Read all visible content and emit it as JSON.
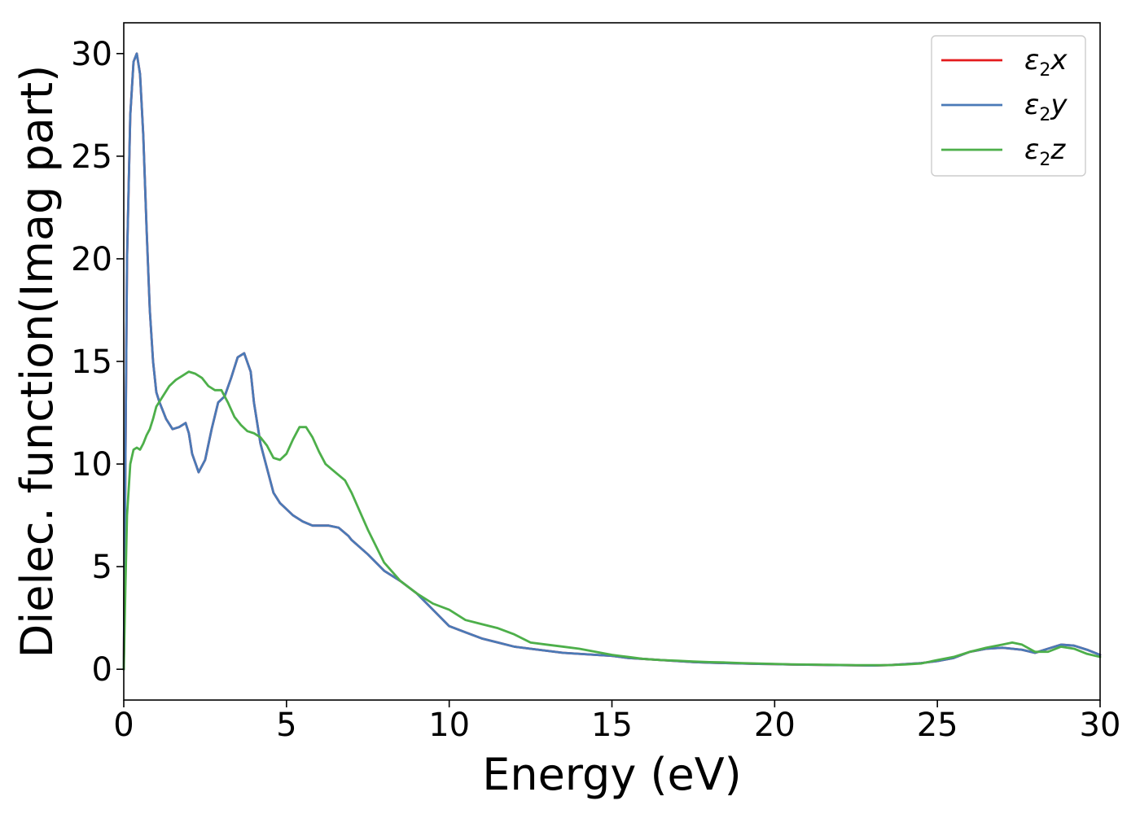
{
  "chart_data": {
    "type": "line",
    "xlabel": "Energy (eV)",
    "ylabel": "Dielec. function(Imag part)",
    "xlim": [
      0,
      30
    ],
    "ylim": [
      -1.5,
      31.5
    ],
    "xticks": [
      0,
      5,
      10,
      15,
      20,
      25,
      30
    ],
    "yticks": [
      0,
      5,
      10,
      15,
      20,
      25,
      30
    ],
    "xtick_labels": [
      "0",
      "5",
      "10",
      "15",
      "20",
      "25",
      "30"
    ],
    "ytick_labels": [
      "0",
      "5",
      "10",
      "15",
      "20",
      "25",
      "30"
    ],
    "grid": false,
    "legend_position": "top-right",
    "series": [
      {
        "name": "ε₂x",
        "legend_base": "ε",
        "legend_sub": "2",
        "legend_var": "x",
        "color": "#e41a1c",
        "x": [
          0,
          0.05,
          0.1,
          0.2,
          0.3,
          0.4,
          0.5,
          0.6,
          0.7,
          0.8,
          0.9,
          1.0,
          1.1,
          1.3,
          1.5,
          1.7,
          1.9,
          2.0,
          2.1,
          2.3,
          2.5,
          2.7,
          2.9,
          3.1,
          3.3,
          3.5,
          3.7,
          3.9,
          4.0,
          4.2,
          4.4,
          4.6,
          4.8,
          5.0,
          5.2,
          5.5,
          5.8,
          6.0,
          6.3,
          6.6,
          6.9,
          7.0,
          7.5,
          8.0,
          8.5,
          9.0,
          9.5,
          10.0,
          10.5,
          11.0,
          11.5,
          12.0,
          12.5,
          13.0,
          13.5,
          14.0,
          14.5,
          15.0,
          15.5,
          16.0,
          16.5,
          17.0,
          17.5,
          18.0,
          18.5,
          19.0,
          19.5,
          20.0,
          20.5,
          21.0,
          21.5,
          22.0,
          22.5,
          23.0,
          23.5,
          24.0,
          24.5,
          25.0,
          25.5,
          26.0,
          26.5,
          27.0,
          27.3,
          27.6,
          28.0,
          28.4,
          28.8,
          29.2,
          29.6,
          30.0
        ],
        "y": [
          0.0,
          10.0,
          20.0,
          27.0,
          29.6,
          30.0,
          29.0,
          26.0,
          21.5,
          17.5,
          15.0,
          13.5,
          13.0,
          12.2,
          11.7,
          11.8,
          12.0,
          11.5,
          10.5,
          9.6,
          10.2,
          11.7,
          13.0,
          13.3,
          14.2,
          15.2,
          15.4,
          14.5,
          13.0,
          11.0,
          9.8,
          8.6,
          8.1,
          7.8,
          7.5,
          7.2,
          7.0,
          7.0,
          7.0,
          6.9,
          6.5,
          6.3,
          5.6,
          4.8,
          4.3,
          3.7,
          2.9,
          2.1,
          1.8,
          1.5,
          1.3,
          1.1,
          1.0,
          0.9,
          0.8,
          0.75,
          0.7,
          0.65,
          0.55,
          0.5,
          0.45,
          0.4,
          0.35,
          0.32,
          0.3,
          0.28,
          0.26,
          0.25,
          0.23,
          0.22,
          0.21,
          0.2,
          0.19,
          0.18,
          0.2,
          0.25,
          0.3,
          0.4,
          0.55,
          0.85,
          1.0,
          1.05,
          1.0,
          0.95,
          0.8,
          1.0,
          1.2,
          1.15,
          0.95,
          0.7
        ]
      },
      {
        "name": "ε₂y",
        "legend_base": "ε",
        "legend_sub": "2",
        "legend_var": "y",
        "color": "#4a7ab7",
        "x": [
          0,
          0.05,
          0.1,
          0.2,
          0.3,
          0.4,
          0.5,
          0.6,
          0.7,
          0.8,
          0.9,
          1.0,
          1.1,
          1.3,
          1.5,
          1.7,
          1.9,
          2.0,
          2.1,
          2.3,
          2.5,
          2.7,
          2.9,
          3.1,
          3.3,
          3.5,
          3.7,
          3.9,
          4.0,
          4.2,
          4.4,
          4.6,
          4.8,
          5.0,
          5.2,
          5.5,
          5.8,
          6.0,
          6.3,
          6.6,
          6.9,
          7.0,
          7.5,
          8.0,
          8.5,
          9.0,
          9.5,
          10.0,
          10.5,
          11.0,
          11.5,
          12.0,
          12.5,
          13.0,
          13.5,
          14.0,
          14.5,
          15.0,
          15.5,
          16.0,
          16.5,
          17.0,
          17.5,
          18.0,
          18.5,
          19.0,
          19.5,
          20.0,
          20.5,
          21.0,
          21.5,
          22.0,
          22.5,
          23.0,
          23.5,
          24.0,
          24.5,
          25.0,
          25.5,
          26.0,
          26.5,
          27.0,
          27.3,
          27.6,
          28.0,
          28.4,
          28.8,
          29.2,
          29.6,
          30.0
        ],
        "y": [
          0.0,
          10.0,
          20.0,
          27.0,
          29.6,
          30.0,
          29.0,
          26.0,
          21.5,
          17.5,
          15.0,
          13.5,
          13.0,
          12.2,
          11.7,
          11.8,
          12.0,
          11.5,
          10.5,
          9.6,
          10.2,
          11.7,
          13.0,
          13.3,
          14.2,
          15.2,
          15.4,
          14.5,
          13.0,
          11.0,
          9.8,
          8.6,
          8.1,
          7.8,
          7.5,
          7.2,
          7.0,
          7.0,
          7.0,
          6.9,
          6.5,
          6.3,
          5.6,
          4.8,
          4.3,
          3.7,
          2.9,
          2.1,
          1.8,
          1.5,
          1.3,
          1.1,
          1.0,
          0.9,
          0.8,
          0.75,
          0.7,
          0.65,
          0.55,
          0.5,
          0.45,
          0.4,
          0.35,
          0.32,
          0.3,
          0.28,
          0.26,
          0.25,
          0.23,
          0.22,
          0.21,
          0.2,
          0.19,
          0.18,
          0.2,
          0.25,
          0.3,
          0.4,
          0.55,
          0.85,
          1.0,
          1.05,
          1.0,
          0.95,
          0.8,
          1.0,
          1.2,
          1.15,
          0.95,
          0.7
        ]
      },
      {
        "name": "ε₂z",
        "legend_base": "ε",
        "legend_sub": "2",
        "legend_var": "z",
        "color": "#4daf4a",
        "x": [
          0,
          0.05,
          0.1,
          0.2,
          0.3,
          0.4,
          0.5,
          0.6,
          0.7,
          0.8,
          0.9,
          1.0,
          1.2,
          1.4,
          1.6,
          1.8,
          2.0,
          2.2,
          2.4,
          2.6,
          2.8,
          3.0,
          3.2,
          3.4,
          3.6,
          3.8,
          4.0,
          4.2,
          4.4,
          4.6,
          4.8,
          5.0,
          5.2,
          5.4,
          5.6,
          5.8,
          6.0,
          6.2,
          6.5,
          6.8,
          7.0,
          7.5,
          8.0,
          8.5,
          9.0,
          9.5,
          10.0,
          10.5,
          11.0,
          11.5,
          12.0,
          12.5,
          13.0,
          13.5,
          14.0,
          14.5,
          15.0,
          15.5,
          16.0,
          16.5,
          17.0,
          17.5,
          18.0,
          18.5,
          19.0,
          19.5,
          20.0,
          20.5,
          21.0,
          21.5,
          22.0,
          22.5,
          23.0,
          23.5,
          24.0,
          24.5,
          25.0,
          25.5,
          26.0,
          26.5,
          27.0,
          27.3,
          27.6,
          28.0,
          28.4,
          28.8,
          29.2,
          29.6,
          30.0
        ],
        "y": [
          0.0,
          4.0,
          7.5,
          10.0,
          10.7,
          10.8,
          10.7,
          11.0,
          11.4,
          11.7,
          12.2,
          12.8,
          13.3,
          13.8,
          14.1,
          14.3,
          14.5,
          14.4,
          14.2,
          13.8,
          13.6,
          13.6,
          13.0,
          12.3,
          11.9,
          11.6,
          11.5,
          11.3,
          10.9,
          10.3,
          10.2,
          10.5,
          11.2,
          11.8,
          11.8,
          11.3,
          10.6,
          10.0,
          9.6,
          9.2,
          8.6,
          6.8,
          5.2,
          4.3,
          3.7,
          3.2,
          2.9,
          2.4,
          2.2,
          2.0,
          1.7,
          1.3,
          1.2,
          1.1,
          1.0,
          0.85,
          0.7,
          0.6,
          0.5,
          0.45,
          0.42,
          0.38,
          0.35,
          0.33,
          0.3,
          0.28,
          0.26,
          0.24,
          0.23,
          0.22,
          0.21,
          0.2,
          0.2,
          0.2,
          0.23,
          0.28,
          0.45,
          0.6,
          0.85,
          1.05,
          1.2,
          1.3,
          1.2,
          0.85,
          0.85,
          1.1,
          1.0,
          0.75,
          0.6
        ]
      }
    ]
  }
}
